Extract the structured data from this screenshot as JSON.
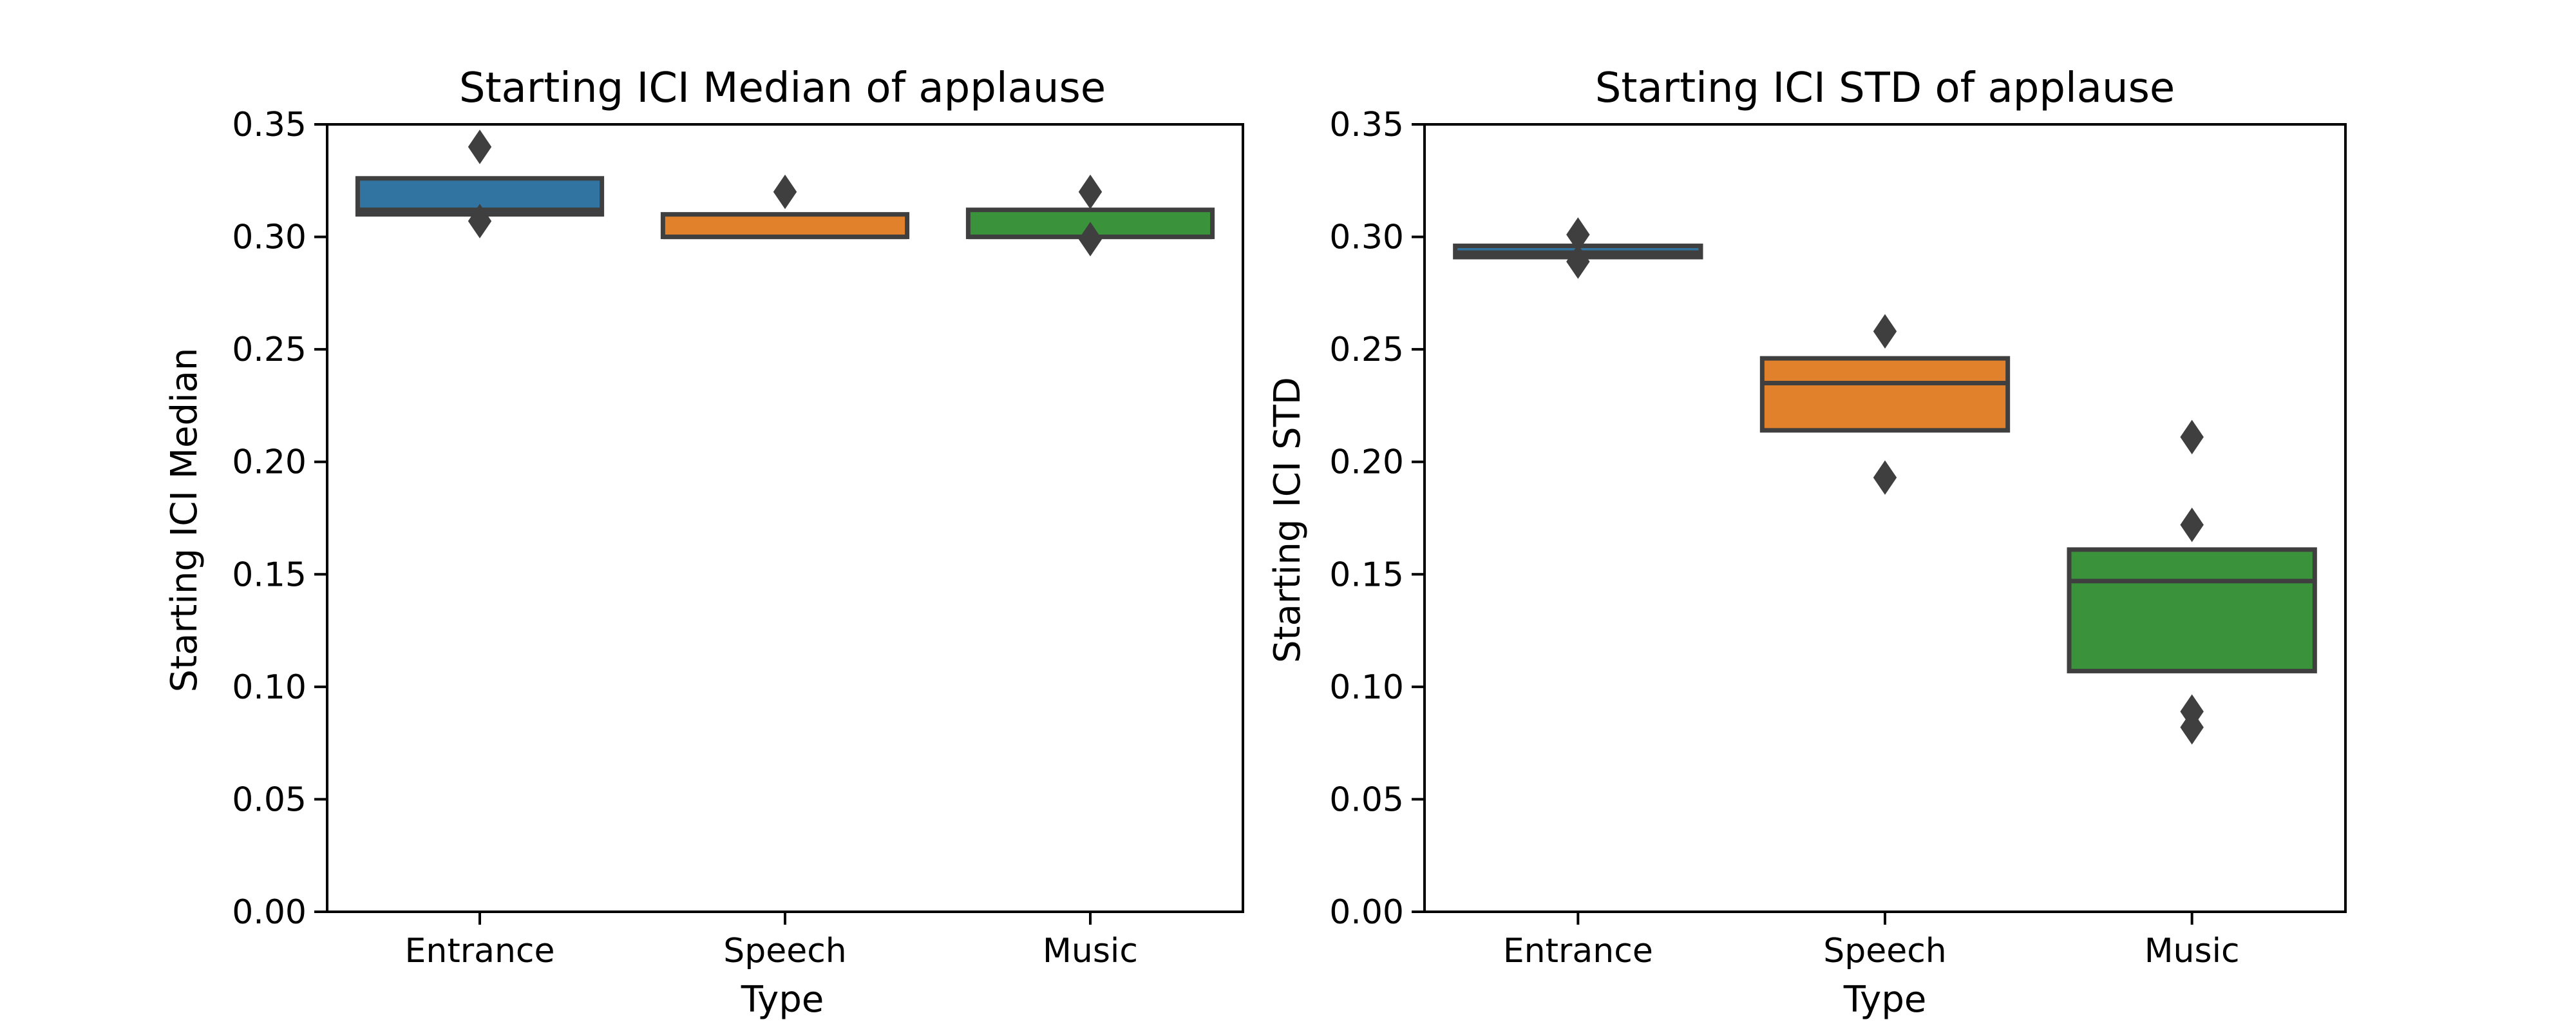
{
  "colors": {
    "box_fill": [
      "#3274a1",
      "#e1812c",
      "#3a923a"
    ],
    "outline": "#3f3f3f",
    "flier": "#3f3f3f",
    "axis": "#000000"
  },
  "chart_data": [
    {
      "type": "boxen",
      "title": "Starting ICI Median of applause",
      "xlabel": "Type",
      "ylabel": "Starting ICI Median",
      "categories": [
        "Entrance",
        "Speech",
        "Music"
      ],
      "ylim": [
        0.0,
        0.35
      ],
      "yticks": [
        0.0,
        0.05,
        0.1,
        0.15,
        0.2,
        0.25,
        0.3,
        0.35
      ],
      "ytick_labels": [
        "0.00",
        "0.05",
        "0.10",
        "0.15",
        "0.20",
        "0.25",
        "0.30",
        "0.35"
      ],
      "grid": false,
      "legend": "none",
      "boxes": [
        {
          "category": "Entrance",
          "lower": 0.31,
          "upper": 0.326,
          "median": 0.312,
          "outliers": [
            0.34,
            0.307
          ]
        },
        {
          "category": "Speech",
          "lower": 0.3,
          "upper": 0.31,
          "median": 0.3,
          "outliers": [
            0.32
          ]
        },
        {
          "category": "Music",
          "lower": 0.3,
          "upper": 0.312,
          "median": 0.3,
          "outliers": [
            0.32,
            0.299
          ]
        }
      ]
    },
    {
      "type": "boxen",
      "title": "Starting ICI STD of applause",
      "xlabel": "Type",
      "ylabel": "Starting ICI STD",
      "categories": [
        "Entrance",
        "Speech",
        "Music"
      ],
      "ylim": [
        0.0,
        0.35
      ],
      "yticks": [
        0.0,
        0.05,
        0.1,
        0.15,
        0.2,
        0.25,
        0.3,
        0.35
      ],
      "ytick_labels": [
        "0.00",
        "0.05",
        "0.10",
        "0.15",
        "0.20",
        "0.25",
        "0.30",
        "0.35"
      ],
      "grid": false,
      "legend": "none",
      "boxes": [
        {
          "category": "Entrance",
          "lower": 0.291,
          "upper": 0.296,
          "median": 0.293,
          "outliers": [
            0.301,
            0.289
          ]
        },
        {
          "category": "Speech",
          "lower": 0.214,
          "upper": 0.246,
          "median": 0.235,
          "outliers": [
            0.258,
            0.193
          ]
        },
        {
          "category": "Music",
          "lower": 0.107,
          "upper": 0.161,
          "median": 0.147,
          "outliers": [
            0.211,
            0.172,
            0.089,
            0.082
          ]
        }
      ]
    }
  ]
}
